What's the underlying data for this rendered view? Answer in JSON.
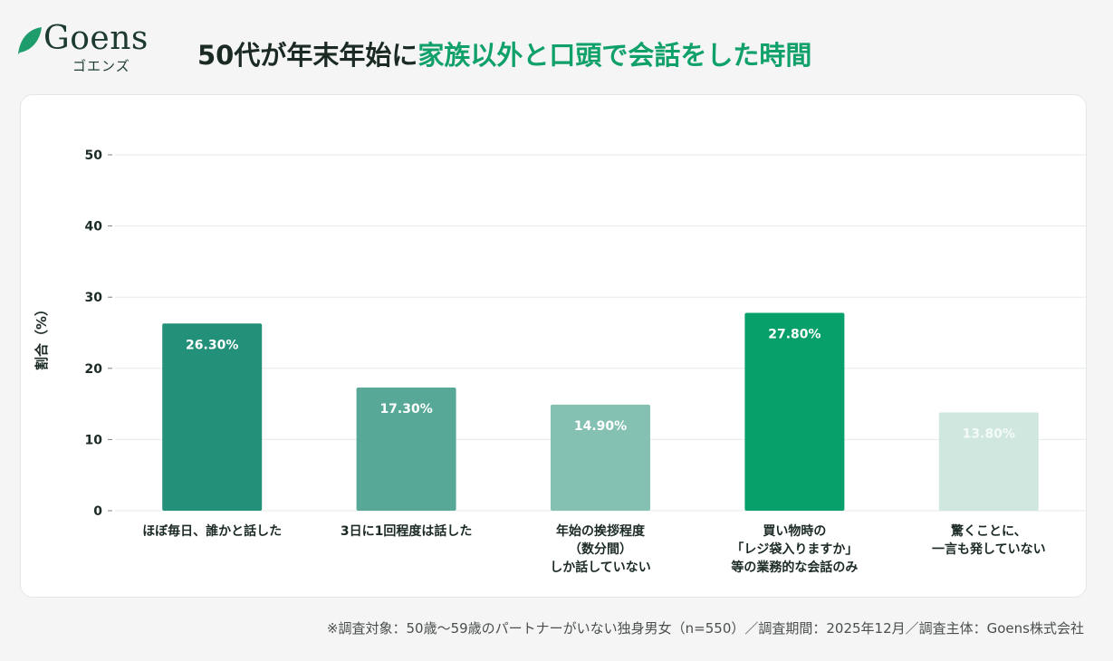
{
  "logo": {
    "wordmark": "Goens",
    "kana": "ゴエンズ",
    "leaf_color": "#1e9c6c"
  },
  "title": {
    "part1": "50代が年末年始に",
    "part2": "家族以外と口頭で会話をした時間"
  },
  "footnote": "※調査対象：50歳〜59歳のパートナーがいない独身男女（n=550）／調査期間：2025年12月／調査主体：Goens株式会社",
  "chart_data": {
    "type": "bar",
    "title": "",
    "xlabel": "",
    "ylabel": "割合（%）",
    "ylim": [
      0,
      50
    ],
    "yticks": [
      0,
      10,
      20,
      30,
      40,
      50
    ],
    "grid": true,
    "categories": [
      [
        "ほぼ毎日、誰かと話した"
      ],
      [
        "3日に1回程度は話した"
      ],
      [
        "年始の挨拶程度",
        "（数分間）",
        "しか話していない"
      ],
      [
        "買い物時の",
        "「レジ袋入りますか」",
        "等の業務的な会話のみ"
      ],
      [
        "驚くことに、",
        "一言も発していない"
      ]
    ],
    "values": [
      26.3,
      17.3,
      14.9,
      27.8,
      13.8
    ],
    "value_labels": [
      "26.30%",
      "17.30%",
      "14.90%",
      "27.80%",
      "13.80%"
    ],
    "bar_colors": [
      "#23907a",
      "#58a898",
      "#84c1b2",
      "#08a06a",
      "#d0e7df"
    ]
  }
}
